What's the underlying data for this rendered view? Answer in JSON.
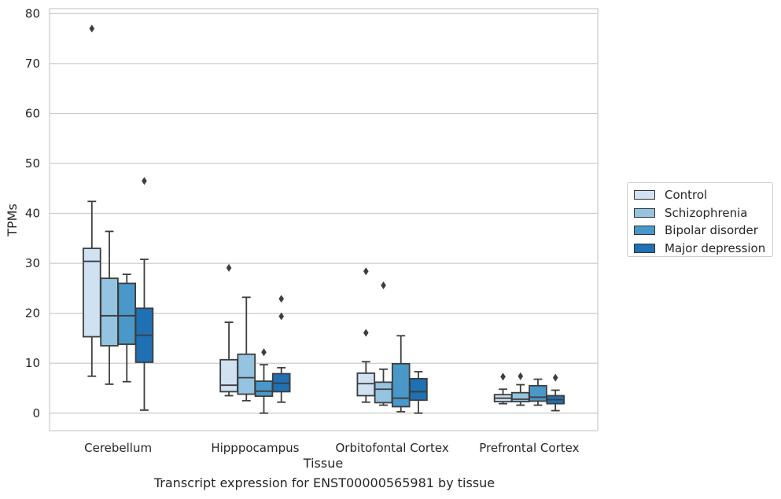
{
  "chart_data": {
    "type": "box",
    "xlabel": "Tissue",
    "ylabel": "TPMs",
    "caption": "Transcript expression for ENST00000565981 by tissue",
    "ylim": [
      -3.5,
      81
    ],
    "yticks": [
      0,
      10,
      20,
      30,
      40,
      50,
      60,
      70,
      80
    ],
    "grid": "horizontal",
    "legend_position": "right",
    "categories": [
      "Cerebellum",
      "Hipppocampus",
      "Orbitofontal Cortex",
      "Prefrontal Cortex"
    ],
    "series": [
      {
        "name": "Control",
        "color": "#d0e1f2",
        "boxes": [
          {
            "whisker_low": 7.4,
            "q1": 15.3,
            "median": 30.4,
            "q3": 33.0,
            "whisker_high": 42.4,
            "outliers": [
              77.0
            ]
          },
          {
            "whisker_low": 3.5,
            "q1": 4.3,
            "median": 5.6,
            "q3": 10.7,
            "whisker_high": 18.2,
            "outliers": [
              29.1
            ]
          },
          {
            "whisker_low": 2.2,
            "q1": 3.5,
            "median": 5.9,
            "q3": 8.0,
            "whisker_high": 10.3,
            "outliers": [
              16.1,
              28.4
            ]
          },
          {
            "whisker_low": 1.9,
            "q1": 2.3,
            "median": 3.0,
            "q3": 3.7,
            "whisker_high": 4.8,
            "outliers": [
              7.3
            ]
          }
        ]
      },
      {
        "name": "Schizophrenia",
        "color": "#94c4df",
        "boxes": [
          {
            "whisker_low": 5.8,
            "q1": 13.5,
            "median": 19.5,
            "q3": 27.0,
            "whisker_high": 36.4,
            "outliers": []
          },
          {
            "whisker_low": 2.5,
            "q1": 3.8,
            "median": 7.1,
            "q3": 11.8,
            "whisker_high": 23.2,
            "outliers": []
          },
          {
            "whisker_low": 1.6,
            "q1": 2.1,
            "median": 4.8,
            "q3": 6.2,
            "whisker_high": 8.8,
            "outliers": [
              25.6
            ]
          },
          {
            "whisker_low": 1.6,
            "q1": 2.3,
            "median": 2.8,
            "q3": 4.1,
            "whisker_high": 5.7,
            "outliers": [
              7.4
            ]
          }
        ]
      },
      {
        "name": "Bipolar disorder",
        "color": "#4a98c9",
        "boxes": [
          {
            "whisker_low": 6.3,
            "q1": 13.8,
            "median": 19.5,
            "q3": 26.0,
            "whisker_high": 27.8,
            "outliers": []
          },
          {
            "whisker_low": 0.0,
            "q1": 3.4,
            "median": 4.4,
            "q3": 6.4,
            "whisker_high": 9.7,
            "outliers": [
              12.2
            ]
          },
          {
            "whisker_low": 0.3,
            "q1": 1.3,
            "median": 3.0,
            "q3": 9.9,
            "whisker_high": 15.5,
            "outliers": []
          },
          {
            "whisker_low": 1.6,
            "q1": 2.4,
            "median": 3.2,
            "q3": 5.5,
            "whisker_high": 6.8,
            "outliers": []
          }
        ]
      },
      {
        "name": "Major depression",
        "color": "#2070b4",
        "boxes": [
          {
            "whisker_low": 0.6,
            "q1": 10.2,
            "median": 15.6,
            "q3": 21.0,
            "whisker_high": 30.8,
            "outliers": [
              46.5
            ]
          },
          {
            "whisker_low": 2.2,
            "q1": 4.3,
            "median": 6.0,
            "q3": 7.9,
            "whisker_high": 9.1,
            "outliers": [
              19.4,
              22.9
            ]
          },
          {
            "whisker_low": 0.0,
            "q1": 2.6,
            "median": 4.3,
            "q3": 6.9,
            "whisker_high": 8.3,
            "outliers": []
          },
          {
            "whisker_low": 0.5,
            "q1": 1.9,
            "median": 2.7,
            "q3": 3.5,
            "whisker_high": 4.6,
            "outliers": [
              7.1
            ]
          }
        ]
      }
    ]
  }
}
